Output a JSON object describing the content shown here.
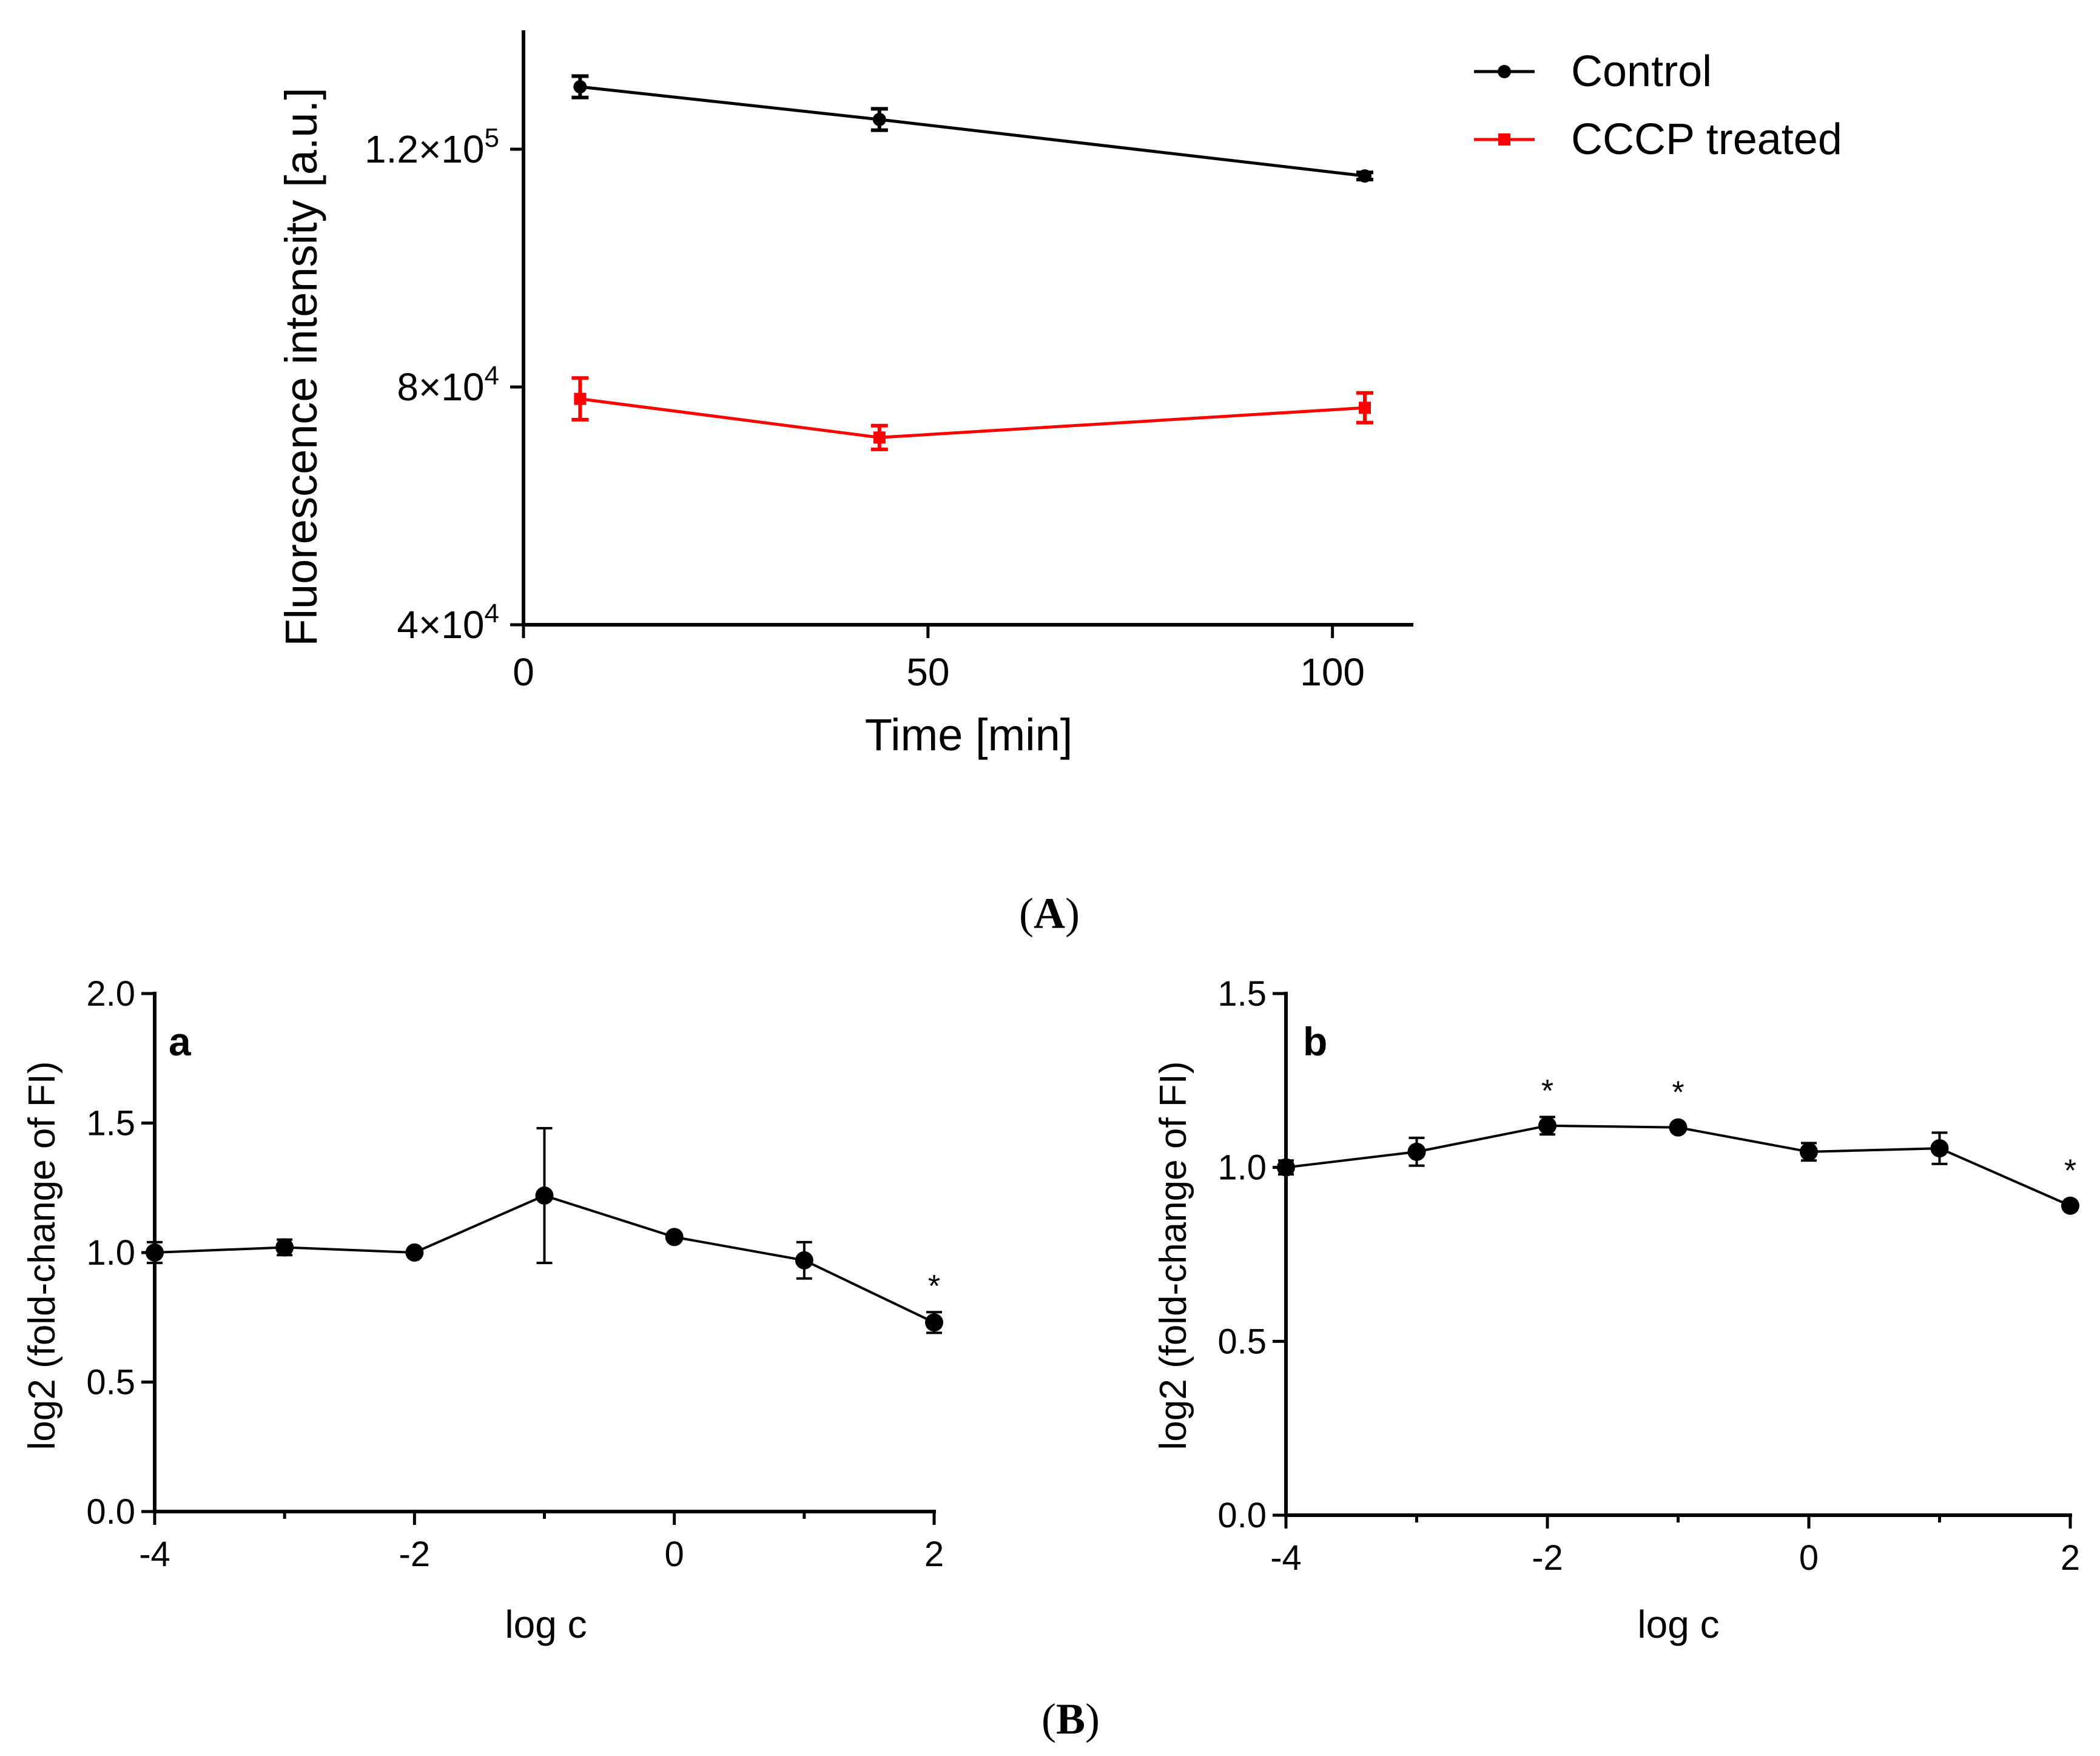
{
  "panel_A": {
    "label_open": "(",
    "label_letter": "A",
    "label_close": ")",
    "chart_data": {
      "type": "line",
      "xlabel": "Time [min]",
      "ylabel": "Fluorescence intensity [a.u.]",
      "xlim": [
        0,
        110
      ],
      "ylim": [
        40000,
        140000
      ],
      "xticks": [
        {
          "value": 0,
          "label": "0"
        },
        {
          "value": 50,
          "label": "50"
        },
        {
          "value": 100,
          "label": "100"
        }
      ],
      "yticks": [
        {
          "value": 40000,
          "mant": "4×10",
          "exp": "4"
        },
        {
          "value": 80000,
          "mant": "8×10",
          "exp": "4"
        },
        {
          "value": 120000,
          "mant": "1.2×10",
          "exp": "5"
        }
      ],
      "series": [
        {
          "name": "Control",
          "color": "#000000",
          "marker": "circle",
          "x": [
            7,
            44,
            104
          ],
          "y": [
            130500,
            125000,
            115500
          ],
          "err": [
            1800,
            1800,
            600
          ]
        },
        {
          "name": "CCCP treated",
          "color": "#ff0000",
          "marker": "square",
          "x": [
            7,
            44,
            104
          ],
          "y": [
            78000,
            71500,
            76500
          ],
          "err": [
            3500,
            2000,
            2500
          ]
        }
      ]
    }
  },
  "panel_B": {
    "label_open": "(",
    "label_letter": "B",
    "label_close": ")",
    "charts": [
      {
        "id": "a",
        "panel_letter": "a",
        "chart_data": {
          "type": "line",
          "xlabel": "log c",
          "ylabel": "log2 (fold-change of FI)",
          "xlim": [
            -4,
            2
          ],
          "ylim": [
            0,
            2.0
          ],
          "xticks": [
            {
              "value": -4,
              "label": "-4"
            },
            {
              "value": -2,
              "label": "-2"
            },
            {
              "value": 0,
              "label": "0"
            },
            {
              "value": 2,
              "label": "2"
            }
          ],
          "yticks": [
            {
              "value": 0,
              "label": "0.0"
            },
            {
              "value": 0.5,
              "label": "0.5"
            },
            {
              "value": 1.0,
              "label": "1.0"
            },
            {
              "value": 1.5,
              "label": "1.5"
            },
            {
              "value": 2.0,
              "label": "2.0"
            }
          ],
          "series": [
            {
              "name": "a",
              "x": [
                -4,
                -3,
                -2,
                -1,
                0,
                1,
                2
              ],
              "y": [
                1.0,
                1.02,
                1.0,
                1.22,
                1.06,
                0.97,
                0.73
              ],
              "err": [
                0.04,
                0.03,
                0.01,
                0.26,
                0.01,
                0.07,
                0.04
              ],
              "significant": [
                false,
                false,
                false,
                false,
                false,
                false,
                true
              ]
            }
          ],
          "sig_marker": "*"
        }
      },
      {
        "id": "b",
        "panel_letter": "b",
        "chart_data": {
          "type": "line",
          "xlabel": "log c",
          "ylabel": "log2 (fold-change of FI)",
          "xlim": [
            -4,
            2
          ],
          "ylim": [
            0,
            1.5
          ],
          "xticks": [
            {
              "value": -4,
              "label": "-4"
            },
            {
              "value": -2,
              "label": "-2"
            },
            {
              "value": 0,
              "label": "0"
            },
            {
              "value": 2,
              "label": "2"
            }
          ],
          "yticks": [
            {
              "value": 0,
              "label": "0.0"
            },
            {
              "value": 0.5,
              "label": "0.5"
            },
            {
              "value": 1.0,
              "label": "1.0"
            },
            {
              "value": 1.5,
              "label": "1.5"
            }
          ],
          "series": [
            {
              "name": "b",
              "x": [
                -4,
                -3,
                -2,
                -1,
                0,
                1,
                2
              ],
              "y": [
                1.0,
                1.045,
                1.12,
                1.115,
                1.045,
                1.055,
                0.89
              ],
              "err": [
                0.02,
                0.04,
                0.025,
                0.01,
                0.025,
                0.045,
                0.01
              ],
              "significant": [
                false,
                false,
                true,
                true,
                false,
                false,
                true
              ]
            }
          ],
          "sig_marker": "*"
        }
      }
    ]
  }
}
